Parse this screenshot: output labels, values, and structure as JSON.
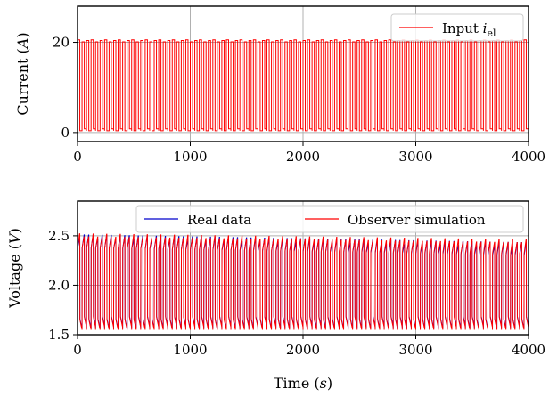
{
  "chart_data": [
    {
      "type": "line",
      "ylabel": "Current (A)",
      "xlabel": "",
      "xlim": [
        0,
        4000
      ],
      "ylim": [
        -2,
        28
      ],
      "xticks": [
        0,
        1000,
        2000,
        3000,
        4000
      ],
      "yticks": [
        0,
        20
      ],
      "xtick_labels": [
        "0",
        "1000",
        "2000",
        "3000",
        "4000"
      ],
      "ytick_labels": [
        "0",
        "20"
      ],
      "grid": true,
      "legend_position": "top-right",
      "series": [
        {
          "name": "Input i_el",
          "name_base": "Input ",
          "name_math": "i",
          "name_sub": "el",
          "color": "#ff0000",
          "kind": "square_wave",
          "period": 40,
          "duty": 0.5,
          "low": 0.5,
          "high": 20.3,
          "x_start": 0,
          "x_end": 4000
        }
      ]
    },
    {
      "type": "line",
      "ylabel": "Voltage (V)",
      "xlabel": "Time (s)",
      "xlim": [
        0,
        4000
      ],
      "ylim": [
        1.5,
        2.85
      ],
      "xticks": [
        0,
        1000,
        2000,
        3000,
        4000
      ],
      "yticks": [
        1.5,
        2.0,
        2.5
      ],
      "xtick_labels": [
        "0",
        "1000",
        "2000",
        "3000",
        "4000"
      ],
      "ytick_labels": [
        "1.5",
        "2.0",
        "2.5"
      ],
      "grid": true,
      "legend_position": "top-right",
      "series": [
        {
          "name": "Real data",
          "color": "#0000cc",
          "kind": "voltage_response",
          "period": 40,
          "duty": 0.5,
          "low": 1.57,
          "high_start": 2.5,
          "high_end": 2.42,
          "x_start": 0,
          "x_end": 4000
        },
        {
          "name": "Observer simulation",
          "color": "#ff0000",
          "kind": "voltage_response",
          "period": 40,
          "duty": 0.5,
          "low": 1.56,
          "high_start": 2.5,
          "high_end": 2.44,
          "x_start": 0,
          "x_end": 4000
        }
      ]
    }
  ]
}
